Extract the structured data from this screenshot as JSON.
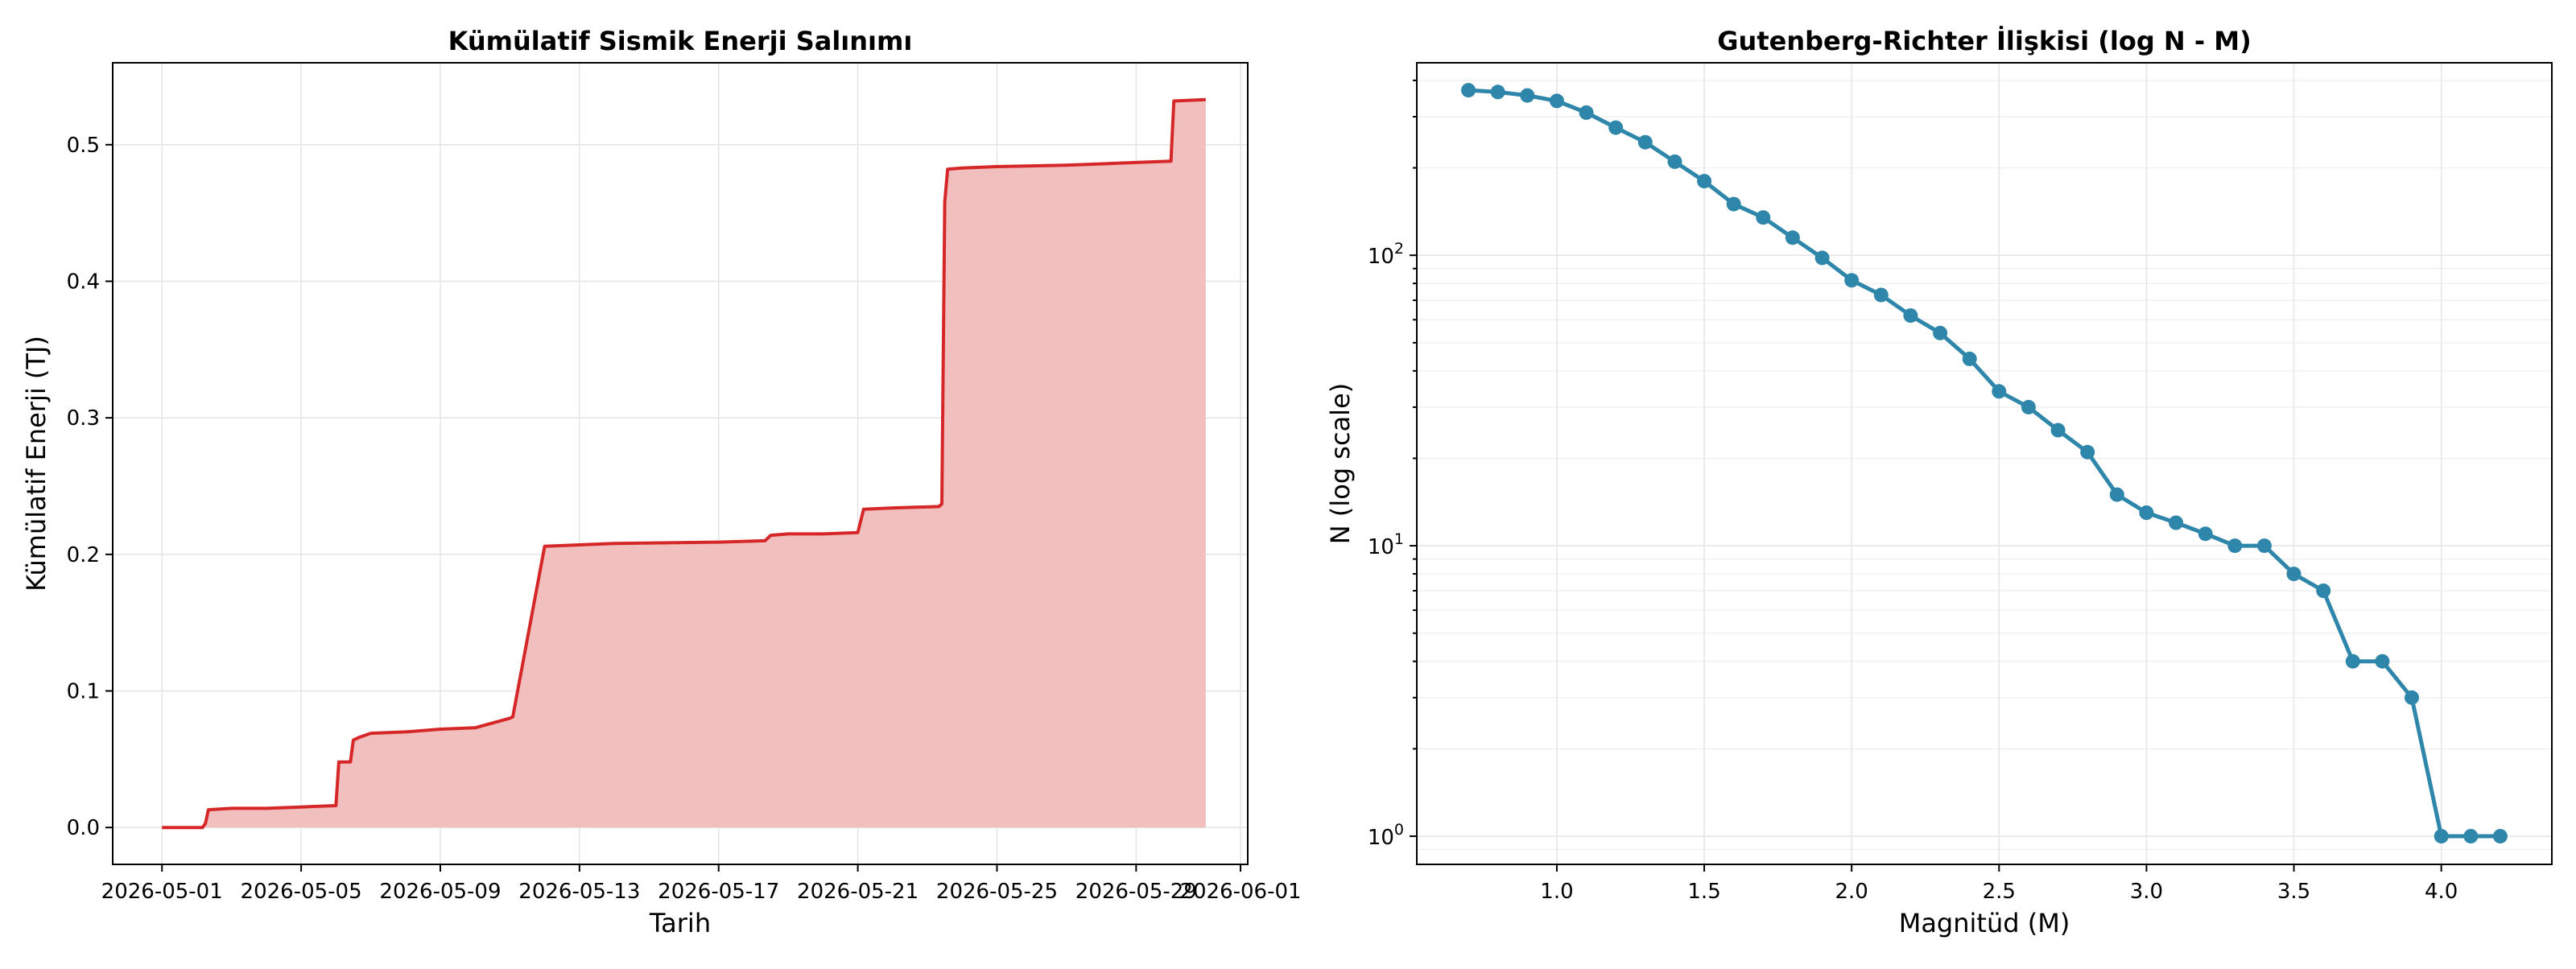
{
  "chart_data": [
    {
      "type": "area",
      "title": "Kümülatif Sismik Enerji Salınımı",
      "xlabel": "Tarih",
      "ylabel": "Kümülatif Enerji (TJ)",
      "x_ticks": [
        "2026-05-01",
        "2026-05-05",
        "2026-05-09",
        "2026-05-13",
        "2026-05-17",
        "2026-05-21",
        "2026-05-25",
        "2026-05-29",
        "2026-06-01"
      ],
      "y_ticks": [
        "0.0",
        "0.1",
        "0.2",
        "0.3",
        "0.4",
        "0.5"
      ],
      "xlim": [
        "2026-04-29T14:00",
        "2026-06-01T05:00"
      ],
      "ylim": [
        -0.027,
        0.56
      ],
      "grid": true,
      "colors": {
        "line": "#d62728",
        "fill": "#f2bfbf"
      },
      "series": [
        {
          "x": [
            "2026-05-01T00:00",
            "2026-05-02T04:00",
            "2026-05-02T06:00",
            "2026-05-02T08:00",
            "2026-05-03T00:00",
            "2026-05-04T00:00",
            "2026-05-05T00:00",
            "2026-05-06T00:00",
            "2026-05-06T02:00",
            "2026-05-06T10:00",
            "2026-05-06T12:00",
            "2026-05-06T16:00",
            "2026-05-07T00:00",
            "2026-05-08T00:00",
            "2026-05-09T00:00",
            "2026-05-10T00:00",
            "2026-05-11T00:00",
            "2026-05-11T02:00",
            "2026-05-12T00:00",
            "2026-05-14T00:00",
            "2026-05-17T00:00",
            "2026-05-18T08:00",
            "2026-05-18T12:00",
            "2026-05-19T00:00",
            "2026-05-20T00:00",
            "2026-05-21T00:00",
            "2026-05-21T04:00",
            "2026-05-22T00:00",
            "2026-05-23T08:00",
            "2026-05-23T10:00",
            "2026-05-23T12:00",
            "2026-05-23T14:00",
            "2026-05-24T00:00",
            "2026-05-25T00:00",
            "2026-05-27T00:00",
            "2026-05-28T00:00",
            "2026-05-29T00:00",
            "2026-05-30T00:00",
            "2026-05-30T02:00",
            "2026-05-31T00:00"
          ],
          "y": [
            0.0,
            0.0,
            0.003,
            0.013,
            0.014,
            0.014,
            0.015,
            0.016,
            0.048,
            0.048,
            0.064,
            0.066,
            0.069,
            0.07,
            0.072,
            0.073,
            0.08,
            0.081,
            0.206,
            0.208,
            0.209,
            0.21,
            0.214,
            0.215,
            0.215,
            0.216,
            0.233,
            0.234,
            0.235,
            0.237,
            0.458,
            0.482,
            0.483,
            0.484,
            0.485,
            0.486,
            0.487,
            0.488,
            0.532,
            0.533
          ]
        }
      ]
    },
    {
      "type": "line",
      "title": "Gutenberg-Richter İlişkisi (log N - M)",
      "xlabel": "Magnitüd (M)",
      "ylabel": "N (log scale)",
      "yscale": "log",
      "x_ticks": [
        "1.0",
        "1.5",
        "2.0",
        "2.5",
        "3.0",
        "3.5",
        "4.0"
      ],
      "y_ticks": [
        {
          "base": "10",
          "exp": "0",
          "value": 1
        },
        {
          "base": "10",
          "exp": "1",
          "value": 10
        },
        {
          "base": "10",
          "exp": "2",
          "value": 100
        }
      ],
      "xlim": [
        0.525,
        4.375
      ],
      "ylim": [
        0.8,
        460
      ],
      "grid": true,
      "colors": {
        "line": "#2e86ab",
        "marker": "#2e86ab"
      },
      "series": [
        {
          "x": [
            0.7,
            0.8,
            0.9,
            1.0,
            1.1,
            1.2,
            1.3,
            1.4,
            1.5,
            1.6,
            1.7,
            1.8,
            1.9,
            2.0,
            2.1,
            2.2,
            2.3,
            2.4,
            2.5,
            2.6,
            2.7,
            2.8,
            2.9,
            3.0,
            3.1,
            3.2,
            3.3,
            3.4,
            3.5,
            3.6,
            3.7,
            3.8,
            3.9,
            4.0,
            4.1,
            4.2
          ],
          "y": [
            370,
            365,
            355,
            340,
            310,
            275,
            245,
            210,
            180,
            150,
            135,
            115,
            98,
            82,
            73,
            62,
            54,
            44,
            34,
            30,
            25,
            21,
            15,
            13,
            12,
            11,
            10,
            10,
            8,
            7,
            4,
            4,
            3,
            1,
            1,
            1
          ]
        }
      ]
    }
  ]
}
